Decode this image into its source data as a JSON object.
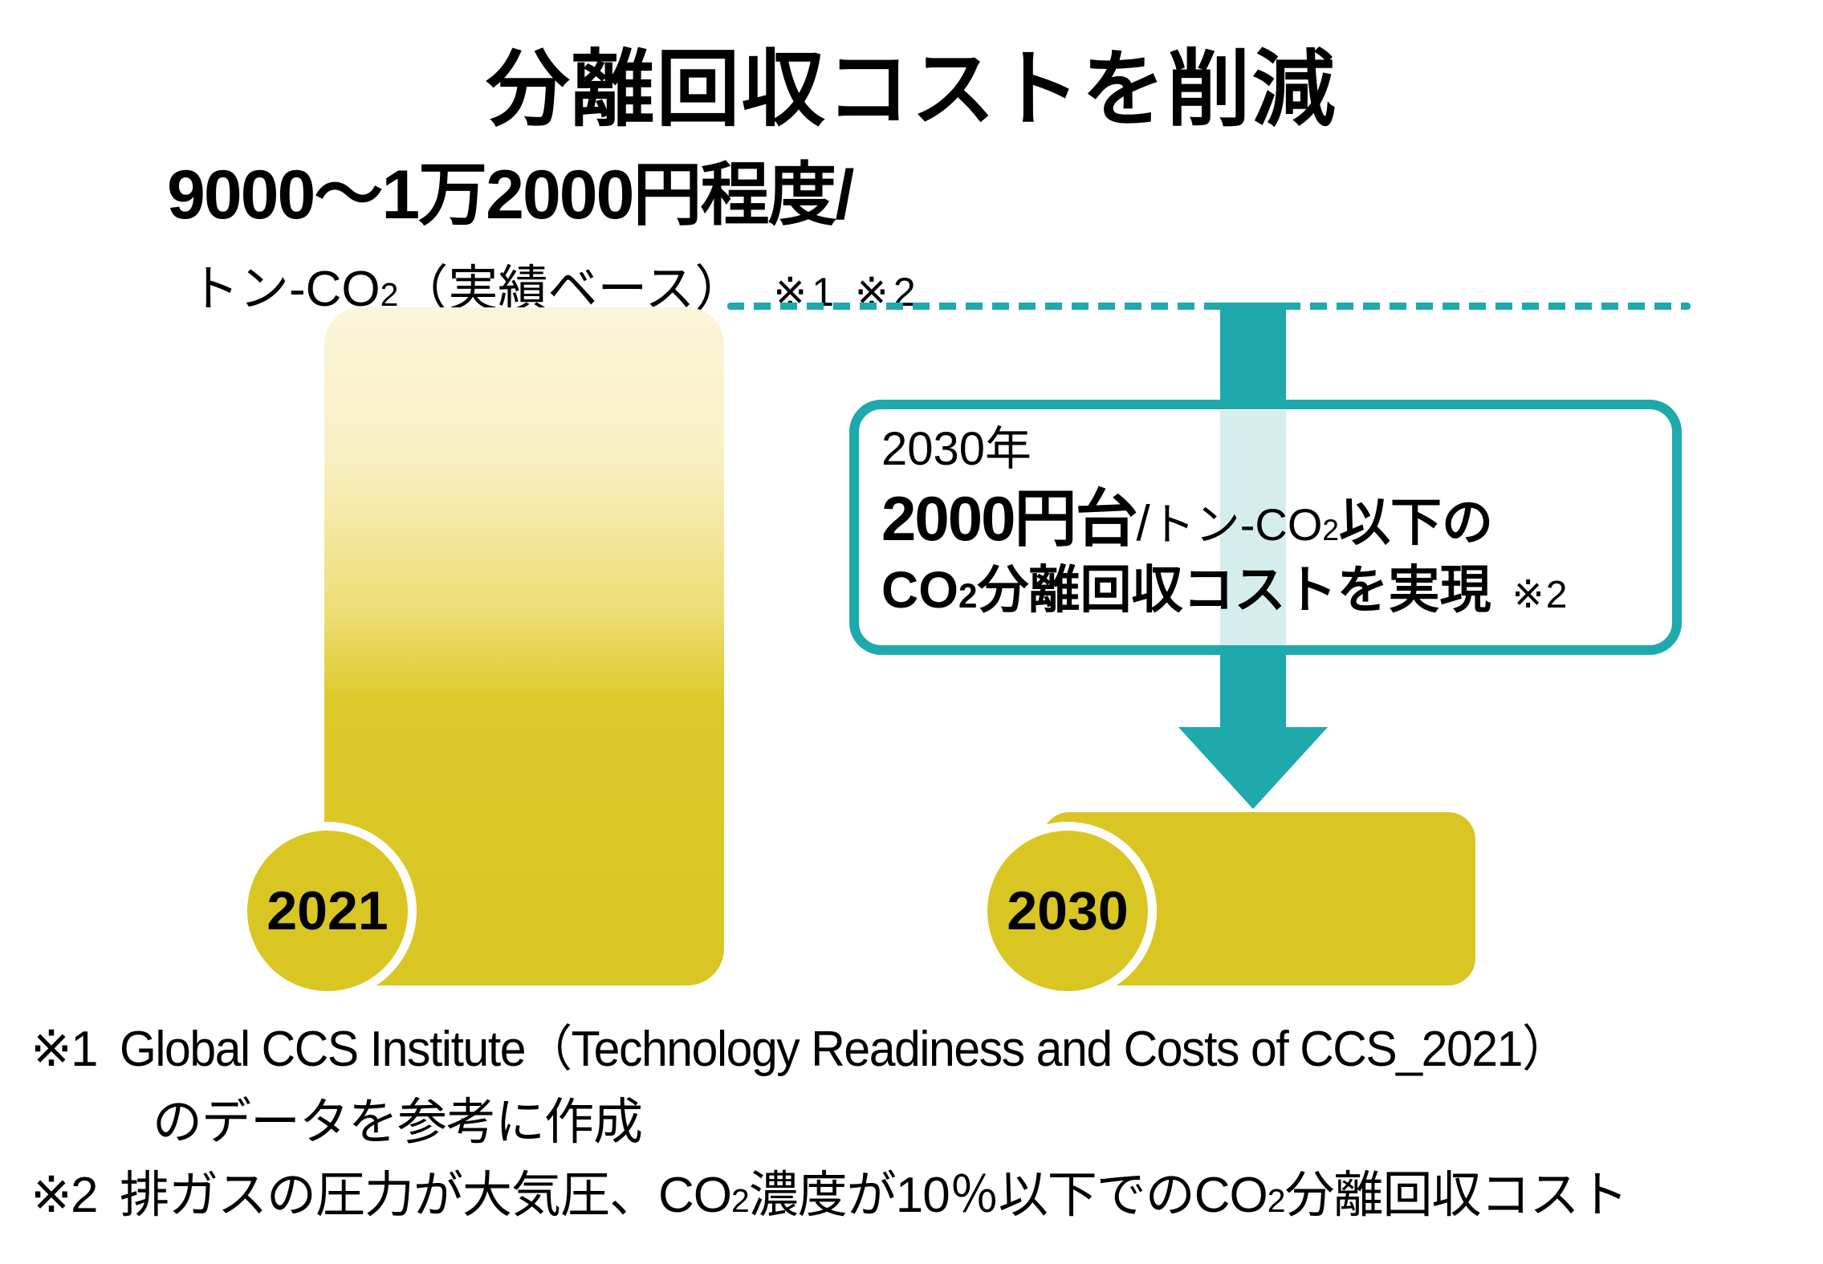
{
  "chart_data": {
    "type": "bar",
    "title": "分離回収コストを削減",
    "unit": "円/トン-CO2",
    "categories": [
      "2021",
      "2030"
    ],
    "values": [
      12000,
      2000
    ],
    "ranges": [
      [
        9000,
        12000
      ],
      [
        0,
        2000
      ]
    ],
    "value_notes": [
      "9000〜1万2000円程度/トン-CO2（実績ベース）※1 ※2",
      "2030年に2000円台/トン-CO2以下のCO2分離回収コストを実現 ※2"
    ],
    "grid": false,
    "legend": false
  },
  "title": {
    "text": "分離回収コストを削減"
  },
  "current_cost_label": {
    "line1": "9000〜1万2000円程度/",
    "unit_prefix": "トン-CO",
    "unit_sub": "2",
    "unit_suffix": "（実績ベース）",
    "refs": "※1 ※2"
  },
  "goal_box": {
    "year_line": "2030年",
    "amount": "2000円台",
    "slash": "/",
    "unit_prefix": "トン-CO",
    "unit_sub": "2",
    "unit_suffix": "以下の",
    "line3_co": "CO",
    "line3_sub": "2",
    "line3_rest": "分離回収コストを実現",
    "line3_ref": "※2"
  },
  "bar_2021": {
    "year": "2021"
  },
  "bar_2030": {
    "year": "2030"
  },
  "footnotes": {
    "note1": {
      "marker": "※1",
      "line1": "Global CCS Institute（Technology Readiness and Costs of CCS_2021）",
      "line2": "のデータを参考に作成"
    },
    "note2": {
      "marker": "※2",
      "part1": "排ガスの圧力が大気圧、CO",
      "sub1": "2",
      "part2": "濃度が10％以下でのCO",
      "sub2": "2",
      "part3": "分離回収コスト"
    }
  },
  "colors": {
    "teal": "#1ea9ad",
    "teal_light": "#d6eded",
    "yellow": "#d9c623",
    "yellow_pale": "#fbf5da",
    "text": "#000000",
    "background": "#ffffff"
  }
}
